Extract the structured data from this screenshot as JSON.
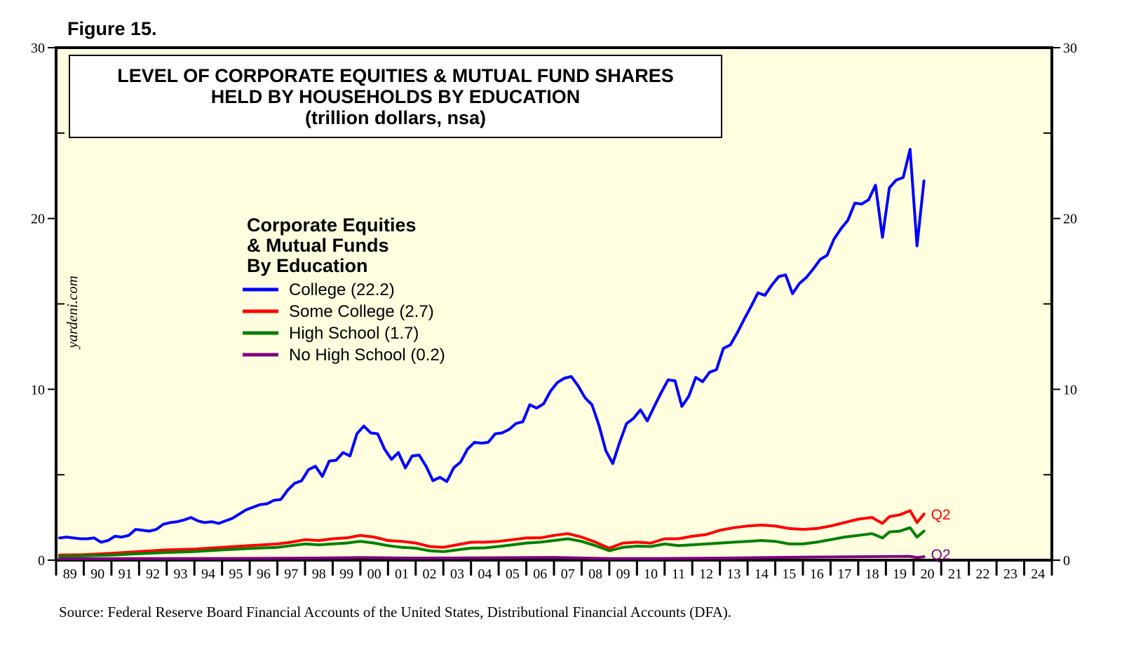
{
  "figure_label": "Figure 15.",
  "watermark": "yardeni.com",
  "source_note": "Source: Federal Reserve Board Financial Accounts of the United States, Distributional Financial Accounts (DFA).",
  "chart_data": {
    "type": "line",
    "title_lines": [
      "LEVEL OF CORPORATE EQUITIES & MUTUAL FUND SHARES",
      "HELD BY HOUSEHOLDS BY EDUCATION",
      "(trillion dollars, nsa)"
    ],
    "legend_title": [
      "Corporate Equities",
      "& Mutual Funds",
      "By Education"
    ],
    "ylim": [
      0,
      30
    ],
    "y_ticks": [
      0,
      10,
      20,
      30
    ],
    "y_minor_step": 5,
    "x_range": [
      1989,
      2025
    ],
    "x_tick_labels": [
      "89",
      "90",
      "91",
      "92",
      "93",
      "94",
      "95",
      "96",
      "97",
      "98",
      "99",
      "00",
      "01",
      "02",
      "03",
      "04",
      "05",
      "06",
      "07",
      "08",
      "09",
      "10",
      "11",
      "12",
      "13",
      "14",
      "15",
      "16",
      "17",
      "18",
      "19",
      "20",
      "21",
      "22",
      "23",
      "24"
    ],
    "end_label": "Q2",
    "series": [
      {
        "name": "College (22.2)",
        "color": "#0000ff",
        "points": [
          [
            1989.125,
            1.3
          ],
          [
            1989.375,
            1.35
          ],
          [
            1989.625,
            1.3
          ],
          [
            1989.875,
            1.25
          ],
          [
            1990.125,
            1.25
          ],
          [
            1990.375,
            1.3
          ],
          [
            1990.625,
            1.05
          ],
          [
            1990.875,
            1.15
          ],
          [
            1991.125,
            1.4
          ],
          [
            1991.375,
            1.35
          ],
          [
            1991.625,
            1.45
          ],
          [
            1991.875,
            1.8
          ],
          [
            1992.125,
            1.75
          ],
          [
            1992.375,
            1.7
          ],
          [
            1992.625,
            1.8
          ],
          [
            1992.875,
            2.1
          ],
          [
            1993.125,
            2.2
          ],
          [
            1993.375,
            2.25
          ],
          [
            1993.625,
            2.35
          ],
          [
            1993.875,
            2.5
          ],
          [
            1994.125,
            2.3
          ],
          [
            1994.375,
            2.2
          ],
          [
            1994.625,
            2.25
          ],
          [
            1994.875,
            2.15
          ],
          [
            1995.125,
            2.3
          ],
          [
            1995.375,
            2.45
          ],
          [
            1995.625,
            2.7
          ],
          [
            1995.875,
            2.95
          ],
          [
            1996.125,
            3.1
          ],
          [
            1996.375,
            3.25
          ],
          [
            1996.625,
            3.3
          ],
          [
            1996.875,
            3.5
          ],
          [
            1997.125,
            3.55
          ],
          [
            1997.375,
            4.1
          ],
          [
            1997.625,
            4.5
          ],
          [
            1997.875,
            4.65
          ],
          [
            1998.125,
            5.3
          ],
          [
            1998.375,
            5.5
          ],
          [
            1998.625,
            4.9
          ],
          [
            1998.875,
            5.8
          ],
          [
            1999.125,
            5.85
          ],
          [
            1999.375,
            6.3
          ],
          [
            1999.625,
            6.1
          ],
          [
            1999.875,
            7.4
          ],
          [
            2000.125,
            7.85
          ],
          [
            2000.375,
            7.45
          ],
          [
            2000.625,
            7.4
          ],
          [
            2000.875,
            6.5
          ],
          [
            2001.125,
            5.9
          ],
          [
            2001.375,
            6.3
          ],
          [
            2001.625,
            5.4
          ],
          [
            2001.875,
            6.1
          ],
          [
            2002.125,
            6.15
          ],
          [
            2002.375,
            5.5
          ],
          [
            2002.625,
            4.65
          ],
          [
            2002.875,
            4.85
          ],
          [
            2003.125,
            4.6
          ],
          [
            2003.375,
            5.4
          ],
          [
            2003.625,
            5.75
          ],
          [
            2003.875,
            6.5
          ],
          [
            2004.125,
            6.9
          ],
          [
            2004.375,
            6.85
          ],
          [
            2004.625,
            6.9
          ],
          [
            2004.875,
            7.4
          ],
          [
            2005.125,
            7.45
          ],
          [
            2005.375,
            7.65
          ],
          [
            2005.625,
            8.0
          ],
          [
            2005.875,
            8.1
          ],
          [
            2006.125,
            9.1
          ],
          [
            2006.375,
            8.9
          ],
          [
            2006.625,
            9.15
          ],
          [
            2006.875,
            9.9
          ],
          [
            2007.125,
            10.4
          ],
          [
            2007.375,
            10.65
          ],
          [
            2007.625,
            10.75
          ],
          [
            2007.875,
            10.2
          ],
          [
            2008.125,
            9.5
          ],
          [
            2008.375,
            9.1
          ],
          [
            2008.625,
            7.9
          ],
          [
            2008.875,
            6.4
          ],
          [
            2009.125,
            5.65
          ],
          [
            2009.375,
            6.9
          ],
          [
            2009.625,
            8.0
          ],
          [
            2009.875,
            8.3
          ],
          [
            2010.125,
            8.8
          ],
          [
            2010.375,
            8.15
          ],
          [
            2010.625,
            9.0
          ],
          [
            2010.875,
            9.8
          ],
          [
            2011.125,
            10.55
          ],
          [
            2011.375,
            10.5
          ],
          [
            2011.625,
            9.0
          ],
          [
            2011.875,
            9.6
          ],
          [
            2012.125,
            10.7
          ],
          [
            2012.375,
            10.45
          ],
          [
            2012.625,
            11.0
          ],
          [
            2012.875,
            11.15
          ],
          [
            2013.125,
            12.4
          ],
          [
            2013.375,
            12.6
          ],
          [
            2013.625,
            13.3
          ],
          [
            2013.875,
            14.1
          ],
          [
            2014.125,
            14.85
          ],
          [
            2014.375,
            15.65
          ],
          [
            2014.625,
            15.5
          ],
          [
            2014.875,
            16.1
          ],
          [
            2015.125,
            16.6
          ],
          [
            2015.375,
            16.7
          ],
          [
            2015.625,
            15.6
          ],
          [
            2015.875,
            16.2
          ],
          [
            2016.125,
            16.55
          ],
          [
            2016.375,
            17.05
          ],
          [
            2016.625,
            17.6
          ],
          [
            2016.875,
            17.85
          ],
          [
            2017.125,
            18.8
          ],
          [
            2017.375,
            19.4
          ],
          [
            2017.625,
            19.9
          ],
          [
            2017.875,
            20.9
          ],
          [
            2018.125,
            20.85
          ],
          [
            2018.375,
            21.1
          ],
          [
            2018.625,
            21.95
          ],
          [
            2018.875,
            18.9
          ],
          [
            2019.125,
            21.8
          ],
          [
            2019.375,
            22.25
          ],
          [
            2019.625,
            22.4
          ],
          [
            2019.875,
            24.05
          ],
          [
            2020.125,
            18.4
          ],
          [
            2020.375,
            22.2
          ]
        ]
      },
      {
        "name": "Some College (2.7)",
        "color": "#ff0000",
        "points": [
          [
            1989.125,
            0.3
          ],
          [
            1990.0,
            0.32
          ],
          [
            1991.0,
            0.4
          ],
          [
            1992.0,
            0.5
          ],
          [
            1993.0,
            0.6
          ],
          [
            1994.0,
            0.65
          ],
          [
            1995.0,
            0.75
          ],
          [
            1996.0,
            0.85
          ],
          [
            1997.0,
            0.95
          ],
          [
            1997.5,
            1.05
          ],
          [
            1998.0,
            1.2
          ],
          [
            1998.5,
            1.15
          ],
          [
            1999.0,
            1.25
          ],
          [
            1999.5,
            1.3
          ],
          [
            2000.0,
            1.45
          ],
          [
            2000.5,
            1.35
          ],
          [
            2001.0,
            1.15
          ],
          [
            2001.5,
            1.1
          ],
          [
            2002.0,
            1.0
          ],
          [
            2002.5,
            0.8
          ],
          [
            2003.0,
            0.75
          ],
          [
            2003.5,
            0.9
          ],
          [
            2004.0,
            1.05
          ],
          [
            2004.5,
            1.05
          ],
          [
            2005.0,
            1.1
          ],
          [
            2005.5,
            1.2
          ],
          [
            2006.0,
            1.3
          ],
          [
            2006.5,
            1.3
          ],
          [
            2007.0,
            1.45
          ],
          [
            2007.5,
            1.55
          ],
          [
            2008.0,
            1.35
          ],
          [
            2008.5,
            1.05
          ],
          [
            2009.0,
            0.7
          ],
          [
            2009.5,
            1.0
          ],
          [
            2010.0,
            1.05
          ],
          [
            2010.5,
            1.0
          ],
          [
            2011.0,
            1.25
          ],
          [
            2011.5,
            1.25
          ],
          [
            2012.0,
            1.4
          ],
          [
            2012.5,
            1.5
          ],
          [
            2013.0,
            1.75
          ],
          [
            2013.5,
            1.9
          ],
          [
            2014.0,
            2.0
          ],
          [
            2014.5,
            2.05
          ],
          [
            2015.0,
            2.0
          ],
          [
            2015.5,
            1.85
          ],
          [
            2016.0,
            1.8
          ],
          [
            2016.5,
            1.85
          ],
          [
            2017.0,
            2.0
          ],
          [
            2017.5,
            2.2
          ],
          [
            2018.0,
            2.4
          ],
          [
            2018.5,
            2.5
          ],
          [
            2018.875,
            2.15
          ],
          [
            2019.125,
            2.55
          ],
          [
            2019.5,
            2.65
          ],
          [
            2019.875,
            2.9
          ],
          [
            2020.125,
            2.2
          ],
          [
            2020.375,
            2.7
          ]
        ]
      },
      {
        "name": "High School (1.7)",
        "color": "#008000",
        "points": [
          [
            1989.125,
            0.22
          ],
          [
            1990.0,
            0.25
          ],
          [
            1991.0,
            0.3
          ],
          [
            1992.0,
            0.38
          ],
          [
            1993.0,
            0.45
          ],
          [
            1994.0,
            0.5
          ],
          [
            1995.0,
            0.6
          ],
          [
            1996.0,
            0.68
          ],
          [
            1997.0,
            0.75
          ],
          [
            1997.5,
            0.85
          ],
          [
            1998.0,
            0.95
          ],
          [
            1998.5,
            0.9
          ],
          [
            1999.0,
            0.95
          ],
          [
            1999.5,
            1.0
          ],
          [
            2000.0,
            1.1
          ],
          [
            2000.5,
            1.0
          ],
          [
            2001.0,
            0.85
          ],
          [
            2001.5,
            0.75
          ],
          [
            2002.0,
            0.7
          ],
          [
            2002.5,
            0.55
          ],
          [
            2003.0,
            0.5
          ],
          [
            2003.5,
            0.6
          ],
          [
            2004.0,
            0.7
          ],
          [
            2004.5,
            0.72
          ],
          [
            2005.0,
            0.8
          ],
          [
            2005.5,
            0.9
          ],
          [
            2006.0,
            1.0
          ],
          [
            2006.5,
            1.05
          ],
          [
            2007.0,
            1.15
          ],
          [
            2007.5,
            1.25
          ],
          [
            2008.0,
            1.1
          ],
          [
            2008.5,
            0.85
          ],
          [
            2009.0,
            0.55
          ],
          [
            2009.5,
            0.75
          ],
          [
            2010.0,
            0.82
          ],
          [
            2010.5,
            0.8
          ],
          [
            2011.0,
            0.95
          ],
          [
            2011.5,
            0.85
          ],
          [
            2012.0,
            0.9
          ],
          [
            2012.5,
            0.95
          ],
          [
            2013.0,
            1.0
          ],
          [
            2013.5,
            1.05
          ],
          [
            2014.0,
            1.1
          ],
          [
            2014.5,
            1.15
          ],
          [
            2015.0,
            1.1
          ],
          [
            2015.5,
            0.95
          ],
          [
            2016.0,
            0.95
          ],
          [
            2016.5,
            1.05
          ],
          [
            2017.0,
            1.2
          ],
          [
            2017.5,
            1.35
          ],
          [
            2018.0,
            1.45
          ],
          [
            2018.5,
            1.55
          ],
          [
            2018.875,
            1.3
          ],
          [
            2019.125,
            1.65
          ],
          [
            2019.5,
            1.7
          ],
          [
            2019.875,
            1.9
          ],
          [
            2020.125,
            1.35
          ],
          [
            2020.375,
            1.7
          ]
        ]
      },
      {
        "name": "No High School (0.2)",
        "color": "#800080",
        "points": [
          [
            1989.125,
            0.08
          ],
          [
            1992.0,
            0.09
          ],
          [
            1995.0,
            0.1
          ],
          [
            1998.0,
            0.12
          ],
          [
            2000.0,
            0.15
          ],
          [
            2002.0,
            0.12
          ],
          [
            2004.0,
            0.13
          ],
          [
            2007.0,
            0.16
          ],
          [
            2009.0,
            0.09
          ],
          [
            2011.0,
            0.1
          ],
          [
            2013.0,
            0.12
          ],
          [
            2015.0,
            0.16
          ],
          [
            2018.0,
            0.2
          ],
          [
            2019.875,
            0.22
          ],
          [
            2020.125,
            0.15
          ],
          [
            2020.375,
            0.2
          ]
        ]
      }
    ]
  }
}
